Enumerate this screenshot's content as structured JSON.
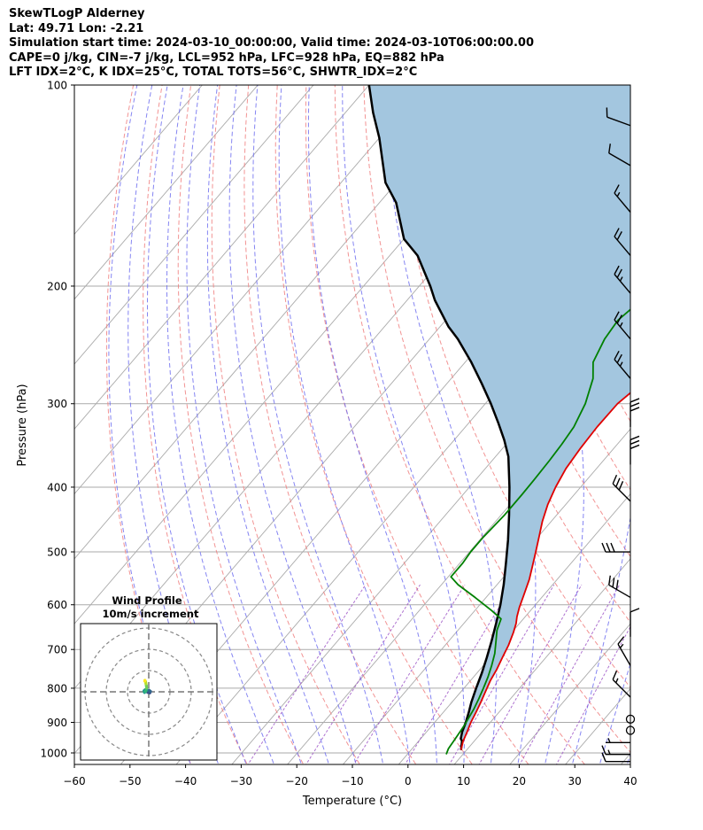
{
  "header": {
    "lines": [
      "SkewTLogP Alderney",
      "Lat: 49.71   Lon: -2.21",
      "Simulation start time: 2024-03-10_00:00:00, Valid time: 2024-03-10T06:00:00.00",
      "CAPE=0 j/kg, CIN=-7 j/kg, LCL=952 hPa, LFC=928 hPa, EQ=882 hPa",
      "LFT IDX=2°C, K IDX=25°C, TOTAL TOTS=56°C, SHWTR_IDX=2°C"
    ]
  },
  "chart_data": {
    "type": "line",
    "subtype": "skew-t log-p diagram",
    "xlabel": "Temperature (°C)",
    "ylabel": "Pressure (hPa)",
    "xlim": [
      -60,
      40
    ],
    "ylim": [
      1050,
      100
    ],
    "y_scale": "log",
    "x_ticks": [
      "−60",
      "−50",
      "−40",
      "−30",
      "−20",
      "−10",
      "0",
      "10",
      "20",
      "30",
      "40"
    ],
    "y_ticks": [
      "100",
      "200",
      "300",
      "400",
      "500",
      "600",
      "700",
      "800",
      "900",
      "1000"
    ],
    "grid": true,
    "colors": {
      "temperature": "#e00000",
      "dewpoint": "#008000",
      "parcel": "#000000",
      "cape_fill": "#a3c6df",
      "dry_adiabats": "#f08080",
      "moist_adiabats": "#7070f0",
      "mixing_ratio": "#9a4fc4",
      "isotherms": "#aaaaaa"
    },
    "series": [
      {
        "key": "temperature",
        "points": [
          [
            9.0,
            990
          ],
          [
            8.0,
            960
          ],
          [
            7.3,
            930
          ],
          [
            6.5,
            900
          ],
          [
            5.9,
            870
          ],
          [
            5.2,
            840
          ],
          [
            4.4,
            810
          ],
          [
            3.6,
            780
          ],
          [
            3.0,
            750
          ],
          [
            2.2,
            720
          ],
          [
            1.4,
            690
          ],
          [
            0.3,
            660
          ],
          [
            -0.6,
            640
          ],
          [
            -1.5,
            625
          ],
          [
            -2.5,
            605
          ],
          [
            -3.6,
            580
          ],
          [
            -5.0,
            550
          ],
          [
            -6.5,
            525
          ],
          [
            -8.1,
            500
          ],
          [
            -9.8,
            475
          ],
          [
            -11.6,
            450
          ],
          [
            -13.2,
            425
          ],
          [
            -14.5,
            400
          ],
          [
            -15.5,
            375
          ],
          [
            -16.0,
            350
          ],
          [
            -16.3,
            325
          ],
          [
            -16.2,
            300
          ],
          [
            -15.0,
            280
          ],
          [
            -10.5,
            250
          ],
          [
            -6.5,
            225
          ],
          [
            -4.0,
            210
          ],
          [
            -2.0,
            190
          ],
          [
            1.5,
            170
          ],
          [
            3.5,
            160
          ],
          [
            6.0,
            150
          ],
          [
            8.6,
            140
          ],
          [
            9.5,
            130
          ],
          [
            10.5,
            120
          ],
          [
            11.5,
            110
          ],
          [
            12.0,
            105
          ],
          [
            12.3,
            100
          ]
        ]
      },
      {
        "key": "dewpoint",
        "points": [
          [
            7.0,
            1005
          ],
          [
            6.5,
            985
          ],
          [
            6.3,
            960
          ],
          [
            6.1,
            940
          ],
          [
            5.8,
            910
          ],
          [
            5.5,
            890
          ],
          [
            5.0,
            860
          ],
          [
            4.3,
            830
          ],
          [
            3.5,
            800
          ],
          [
            2.6,
            770
          ],
          [
            1.5,
            740
          ],
          [
            0.2,
            710
          ],
          [
            -1.5,
            680
          ],
          [
            -3.0,
            655
          ],
          [
            -4.0,
            630
          ],
          [
            -7.0,
            612
          ],
          [
            -12.0,
            585
          ],
          [
            -17.0,
            560
          ],
          [
            -19.5,
            545
          ],
          [
            -19.5,
            520
          ],
          [
            -19.8,
            500
          ],
          [
            -19.8,
            475
          ],
          [
            -19.4,
            440
          ],
          [
            -19.4,
            410
          ],
          [
            -19.5,
            390
          ],
          [
            -19.7,
            365
          ],
          [
            -20.0,
            345
          ],
          [
            -20.5,
            325
          ],
          [
            -22.0,
            300
          ],
          [
            -24.5,
            275
          ],
          [
            -27.0,
            260
          ],
          [
            -28.5,
            240
          ],
          [
            -29.0,
            225
          ],
          [
            -27.5,
            205
          ],
          [
            -26.0,
            190
          ],
          [
            -25.0,
            180
          ],
          [
            -23.0,
            170
          ],
          [
            -21.5,
            160
          ],
          [
            -19.0,
            150
          ],
          [
            -15.5,
            140
          ],
          [
            -13.5,
            130
          ],
          [
            -11.0,
            120
          ],
          [
            -8.0,
            110
          ],
          [
            -6.0,
            104
          ],
          [
            -5.0,
            100
          ]
        ]
      },
      {
        "key": "parcel",
        "points": [
          [
            9.0,
            990
          ],
          [
            7.8,
            960
          ],
          [
            7.2,
            952
          ],
          [
            6.4,
            930
          ],
          [
            5.6,
            900
          ],
          [
            4.6,
            870
          ],
          [
            3.5,
            840
          ],
          [
            2.2,
            800
          ],
          [
            0.9,
            760
          ],
          [
            -0.6,
            720
          ],
          [
            -2.3,
            680
          ],
          [
            -4.2,
            640
          ],
          [
            -6.3,
            600
          ],
          [
            -8.8,
            560
          ],
          [
            -11.7,
            520
          ],
          [
            -14.9,
            480
          ],
          [
            -18.6,
            440
          ],
          [
            -22.8,
            400
          ],
          [
            -27.7,
            360
          ],
          [
            -31.0,
            340
          ],
          [
            -34.8,
            320
          ],
          [
            -39.0,
            300
          ],
          [
            -43.7,
            280
          ],
          [
            -48.9,
            260
          ],
          [
            -54.9,
            240
          ],
          [
            -58.5,
            230
          ],
          [
            -65.0,
            210
          ],
          [
            -68.0,
            200
          ],
          [
            -75.0,
            180
          ],
          [
            -80.0,
            170
          ],
          [
            -87.0,
            150
          ],
          [
            -92.0,
            140
          ],
          [
            -100.0,
            120
          ],
          [
            -105.0,
            110
          ],
          [
            -110.0,
            100
          ]
        ]
      }
    ],
    "wind_barbs": [
      {
        "p": 1030,
        "dir": 270,
        "spd": 10
      },
      {
        "p": 1005,
        "dir": 270,
        "spd": 15
      },
      {
        "p": 965,
        "dir": 270,
        "spd": 5
      },
      {
        "p": 925,
        "dir": 0,
        "spd": 0
      },
      {
        "p": 890,
        "dir": 0,
        "spd": 0
      },
      {
        "p": 825,
        "dir": 315,
        "spd": 15
      },
      {
        "p": 740,
        "dir": 330,
        "spd": 15
      },
      {
        "p": 670,
        "dir": 0,
        "spd": 10
      },
      {
        "p": 585,
        "dir": 300,
        "spd": 30
      },
      {
        "p": 500,
        "dir": 270,
        "spd": 30
      },
      {
        "p": 420,
        "dir": 315,
        "spd": 30
      },
      {
        "p": 370,
        "dir": 0,
        "spd": 30
      },
      {
        "p": 325,
        "dir": 0,
        "spd": 30
      },
      {
        "p": 275,
        "dir": 320,
        "spd": 25
      },
      {
        "p": 240,
        "dir": 320,
        "spd": 25
      },
      {
        "p": 205,
        "dir": 320,
        "spd": 25
      },
      {
        "p": 180,
        "dir": 320,
        "spd": 20
      },
      {
        "p": 155,
        "dir": 320,
        "spd": 15
      },
      {
        "p": 132,
        "dir": 300,
        "spd": 10
      },
      {
        "p": 115,
        "dir": 290,
        "spd": 10
      }
    ],
    "wind_profile": {
      "title": "Wind Profile",
      "subtitle": "10m/s increment",
      "rings_ms": [
        10,
        20,
        30
      ],
      "hodograph_points": [
        [
          -0.5,
          -0.3
        ],
        [
          0.5,
          -0.5
        ],
        [
          0.8,
          0.2
        ],
        [
          0.1,
          0.8
        ],
        [
          -1.0,
          0.6
        ],
        [
          -1.8,
          0.9
        ],
        [
          -2.2,
          0.5
        ],
        [
          -2.0,
          -0.3
        ],
        [
          -1.5,
          0.1
        ],
        [
          -1.2,
          1.0
        ],
        [
          -1.0,
          1.8
        ],
        [
          -1.1,
          2.8
        ],
        [
          -1.3,
          3.8
        ],
        [
          -1.5,
          4.8
        ],
        [
          -1.8,
          5.4
        ],
        [
          -1.9,
          5.0
        ]
      ]
    }
  }
}
